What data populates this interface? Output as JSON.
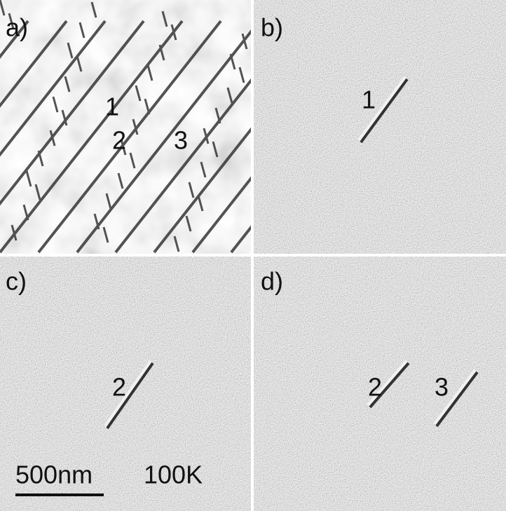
{
  "panels": [
    {
      "label": "a)",
      "markers": [
        "1",
        "2",
        "3"
      ]
    },
    {
      "label": "b)",
      "markers": [
        "1"
      ]
    },
    {
      "label": "c)",
      "markers": [
        "2"
      ]
    },
    {
      "label": "d)",
      "markers": [
        "2",
        "3"
      ]
    }
  ],
  "scale_bar": "500nm",
  "temperature": "100K"
}
